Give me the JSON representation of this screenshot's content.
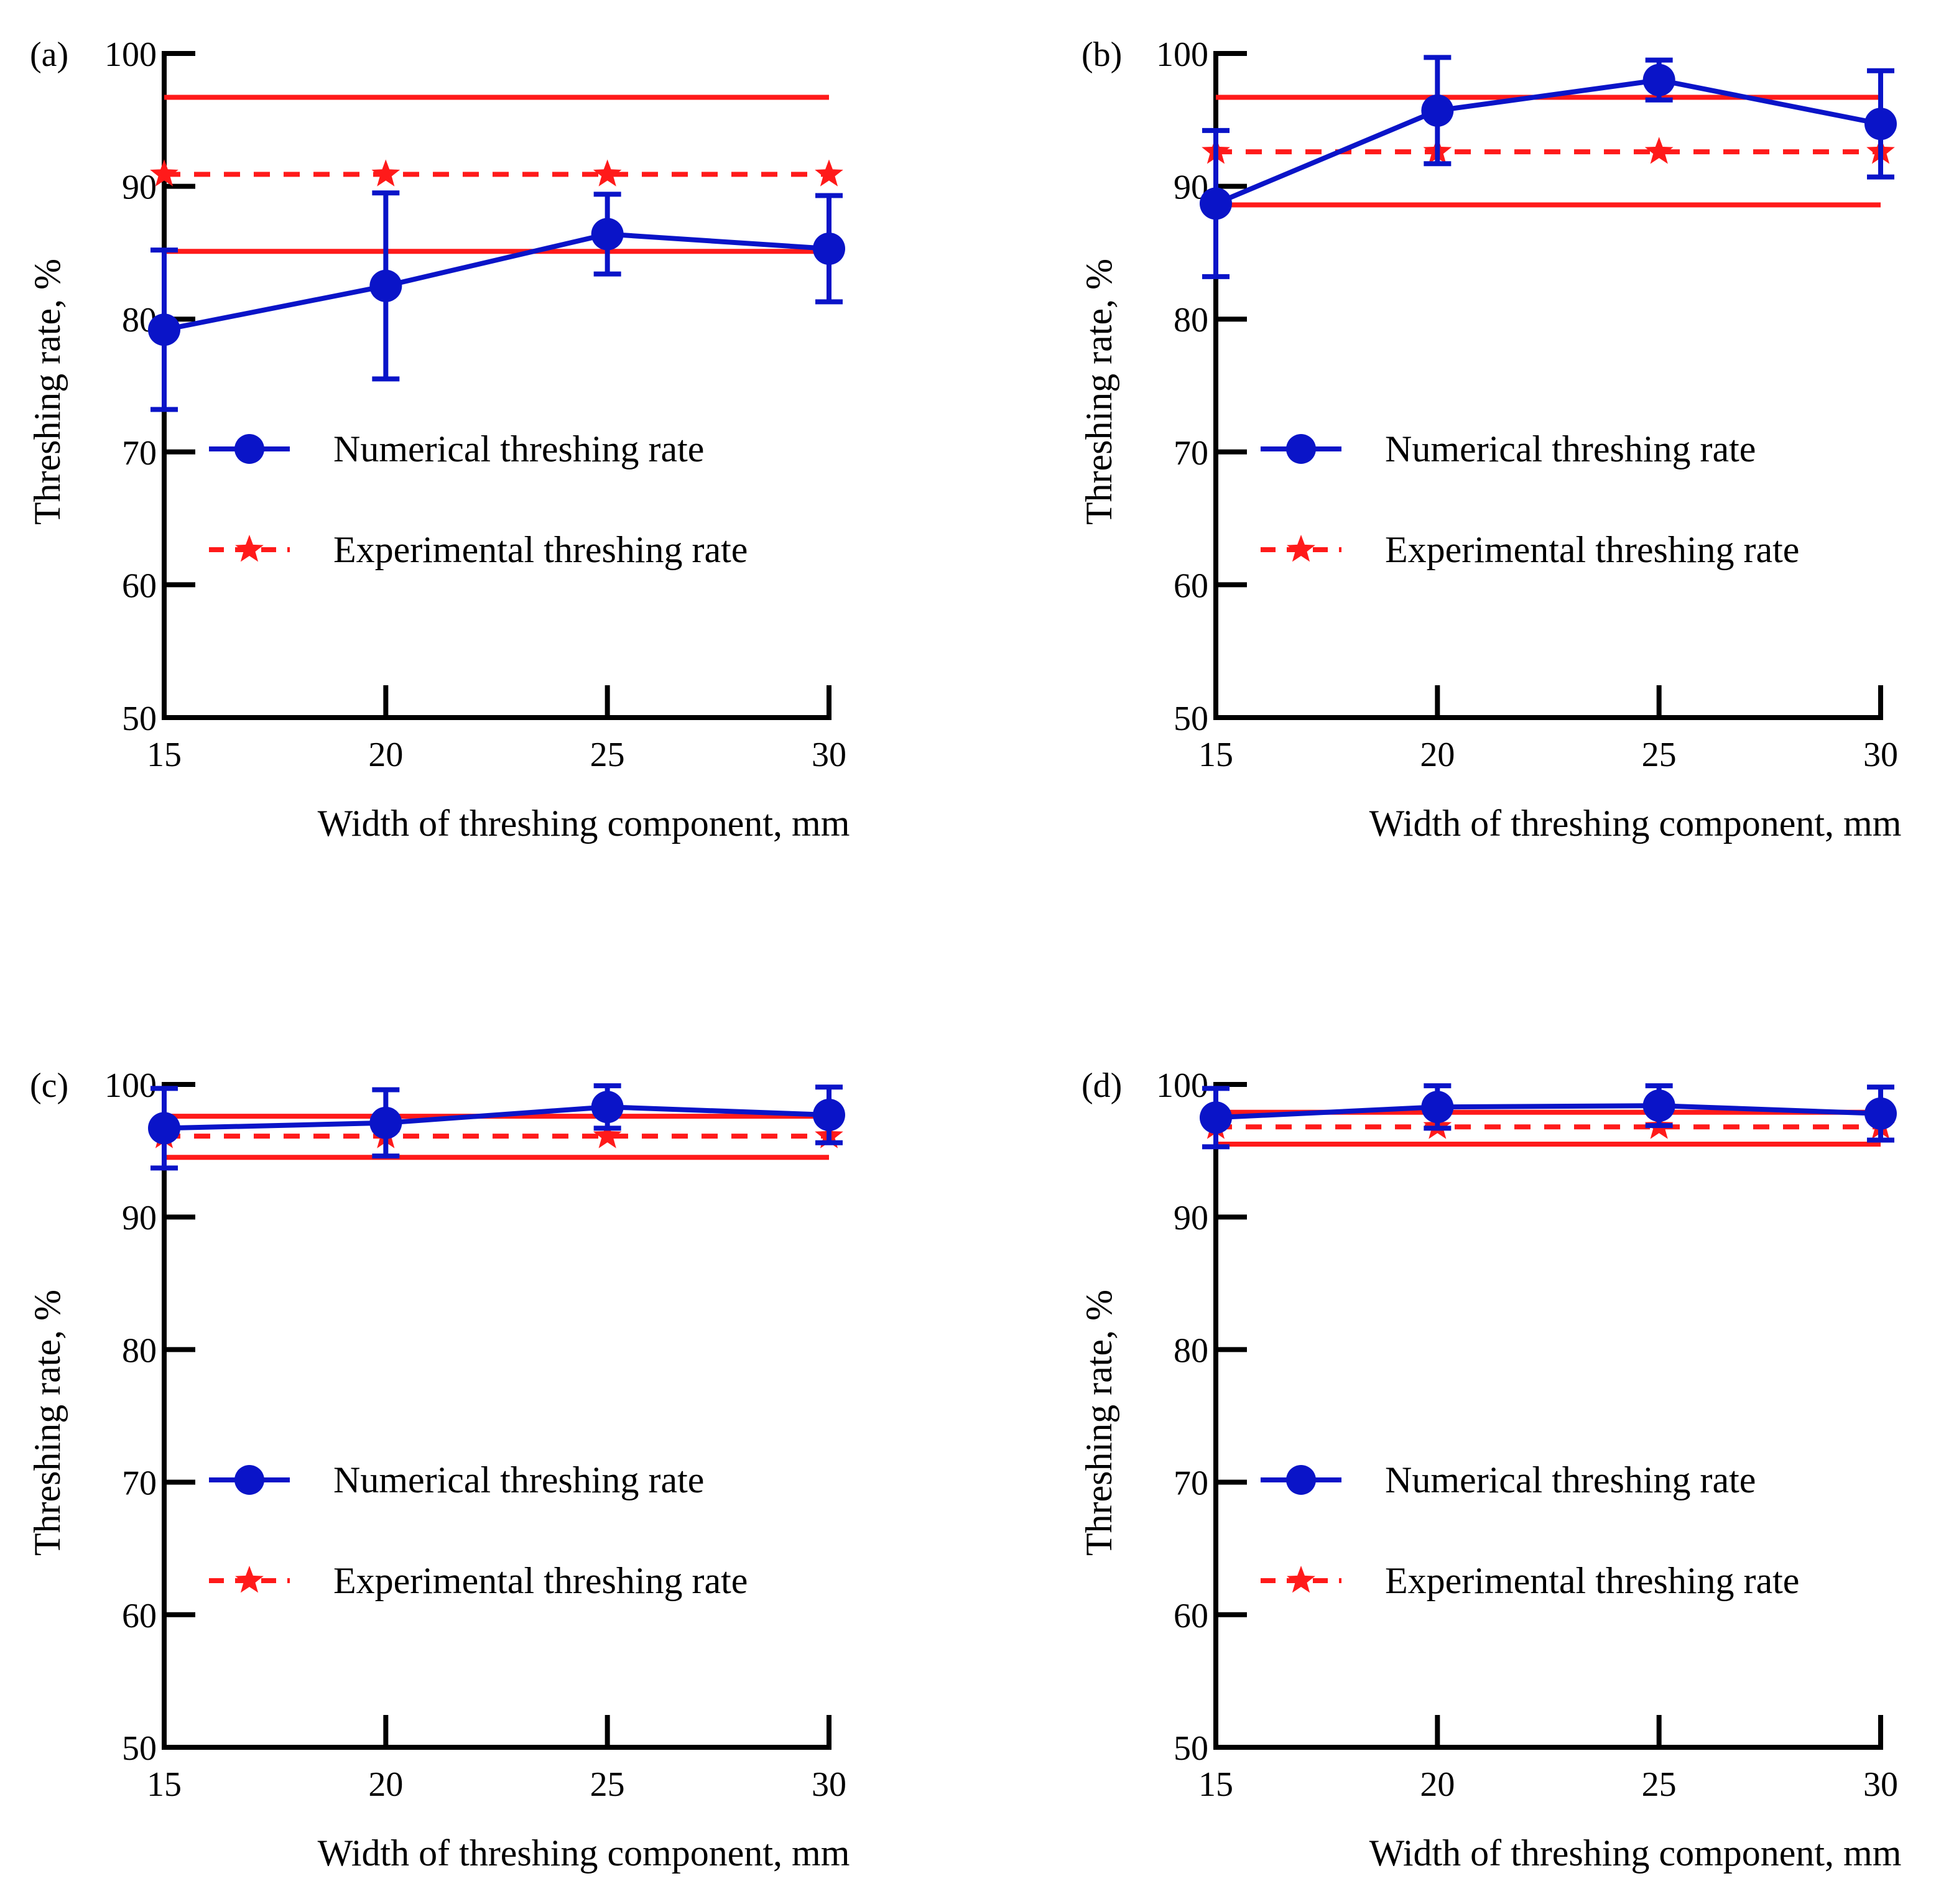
{
  "figure": {
    "colors": {
      "numerical": "#0a14c8",
      "experimental": "#ff1a1a",
      "axis": "#000000",
      "background": "#ffffff"
    }
  },
  "chart_data": [
    {
      "type": "line",
      "panel_label": "(a)",
      "xlabel": "Width of threshing component, mm",
      "ylabel": "Threshing rate, %",
      "x": [
        15,
        20,
        25,
        30
      ],
      "xlim": [
        15,
        30
      ],
      "ylim": [
        50,
        100
      ],
      "xticks": [
        15,
        20,
        25,
        30
      ],
      "yticks": [
        50,
        60,
        70,
        80,
        90,
        100
      ],
      "legend_position": "center-right",
      "series": [
        {
          "name": "Numerical threshing rate",
          "marker": "circle",
          "line": "solid",
          "values": [
            79.2,
            82.5,
            86.4,
            85.3
          ],
          "errors": [
            6.0,
            7.0,
            3.0,
            4.0
          ]
        },
        {
          "name": "Experimental threshing rate",
          "marker": "star",
          "line": "dashed",
          "values": [
            90.9,
            90.9,
            90.9,
            90.9
          ]
        }
      ],
      "reference_lines": [
        96.7,
        85.1
      ]
    },
    {
      "type": "line",
      "panel_label": "(b)",
      "xlabel": "Width of threshing component, mm",
      "ylabel": "Threshing rate, %",
      "x": [
        15,
        20,
        25,
        30
      ],
      "xlim": [
        15,
        30
      ],
      "ylim": [
        50,
        100
      ],
      "xticks": [
        15,
        20,
        25,
        30
      ],
      "yticks": [
        50,
        60,
        70,
        80,
        90,
        100
      ],
      "legend_position": "center-right",
      "series": [
        {
          "name": "Numerical threshing rate",
          "marker": "circle",
          "line": "solid",
          "values": [
            88.7,
            95.7,
            98.0,
            94.7
          ],
          "errors": [
            5.5,
            4.0,
            1.5,
            4.0
          ]
        },
        {
          "name": "Experimental threshing rate",
          "marker": "star",
          "line": "dashed",
          "values": [
            92.6,
            92.6,
            92.6,
            92.6
          ]
        }
      ],
      "reference_lines": [
        96.7,
        88.6
      ]
    },
    {
      "type": "line",
      "panel_label": "(c)",
      "xlabel": "Width of threshing component, mm",
      "ylabel": "Threshing rate, %",
      "x": [
        15,
        20,
        25,
        30
      ],
      "xlim": [
        15,
        30
      ],
      "ylim": [
        50,
        100
      ],
      "xticks": [
        15,
        20,
        25,
        30
      ],
      "yticks": [
        50,
        60,
        70,
        80,
        90,
        100
      ],
      "legend_position": "center-right",
      "series": [
        {
          "name": "Numerical threshing rate",
          "marker": "circle",
          "line": "solid",
          "values": [
            96.7,
            97.1,
            98.3,
            97.7
          ],
          "errors": [
            3.0,
            2.5,
            1.6,
            2.1
          ]
        },
        {
          "name": "Experimental threshing rate",
          "marker": "star",
          "line": "dashed",
          "values": [
            96.1,
            96.1,
            96.1,
            96.1
          ]
        }
      ],
      "reference_lines": [
        97.6,
        94.5
      ]
    },
    {
      "type": "line",
      "panel_label": "(d)",
      "xlabel": "Width of threshing component, mm",
      "ylabel": "Threshing rate, %",
      "x": [
        15,
        20,
        25,
        30
      ],
      "xlim": [
        15,
        30
      ],
      "ylim": [
        50,
        100
      ],
      "xticks": [
        15,
        20,
        25,
        30
      ],
      "yticks": [
        50,
        60,
        70,
        80,
        90,
        100
      ],
      "legend_position": "center-right",
      "series": [
        {
          "name": "Numerical threshing rate",
          "marker": "circle",
          "line": "solid",
          "values": [
            97.5,
            98.3,
            98.4,
            97.8
          ],
          "errors": [
            2.2,
            1.6,
            1.5,
            2.0
          ]
        },
        {
          "name": "Experimental threshing rate",
          "marker": "star",
          "line": "dashed",
          "values": [
            96.8,
            96.8,
            96.8,
            96.8
          ]
        }
      ],
      "reference_lines": [
        97.9,
        95.5
      ]
    }
  ]
}
